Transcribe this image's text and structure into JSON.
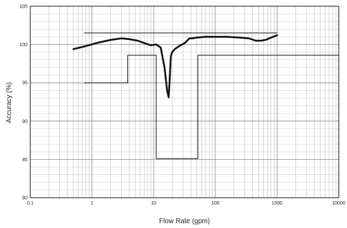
{
  "chart_data": {
    "type": "line",
    "title": "",
    "xlabel": "Flow Rate (gpm)",
    "ylabel": "Accuracy (%)",
    "x_scale": "log",
    "xlim": [
      0.1,
      10000
    ],
    "ylim": [
      80,
      105
    ],
    "grid": true,
    "x_tick_labels": [
      "0.1",
      "1",
      "10",
      "100",
      "1000",
      "10000"
    ],
    "x_tick_values": [
      0.1,
      1,
      10,
      100,
      1000,
      10000
    ],
    "y_tick_labels": [
      "80",
      "85",
      "90",
      "95",
      "100",
      "105"
    ],
    "y_tick_values": [
      80,
      85,
      90,
      95,
      100,
      105
    ],
    "series": [
      {
        "style": "thick",
        "x": [
          0.5,
          0.8,
          1.2,
          2,
          3,
          4,
          5.5,
          7,
          9,
          11,
          13,
          15,
          16.5,
          17.5,
          18.2,
          19,
          20,
          22,
          26,
          32,
          38,
          42,
          50,
          70,
          100,
          150,
          250,
          350,
          450,
          550,
          650,
          800,
          1000
        ],
        "y": [
          99.4,
          99.8,
          100.2,
          100.6,
          100.8,
          100.7,
          100.5,
          100.2,
          99.9,
          100.0,
          99.6,
          97.0,
          94.0,
          93.1,
          95.5,
          98.5,
          99.0,
          99.4,
          99.8,
          100.2,
          100.8,
          100.8,
          100.9,
          101.0,
          101.0,
          101.0,
          100.9,
          100.8,
          100.5,
          100.5,
          100.6,
          100.9,
          101.2
        ]
      },
      {
        "style": "thin",
        "x": [
          0.75,
          1000
        ],
        "y": [
          101.5,
          101.5
        ]
      },
      {
        "style": "thin",
        "x": [
          0.75,
          3.8,
          3.8,
          11,
          11,
          52,
          52,
          10000
        ],
        "y": [
          95.0,
          95.0,
          98.6,
          98.6,
          85.1,
          85.1,
          98.6,
          98.6
        ]
      }
    ]
  }
}
